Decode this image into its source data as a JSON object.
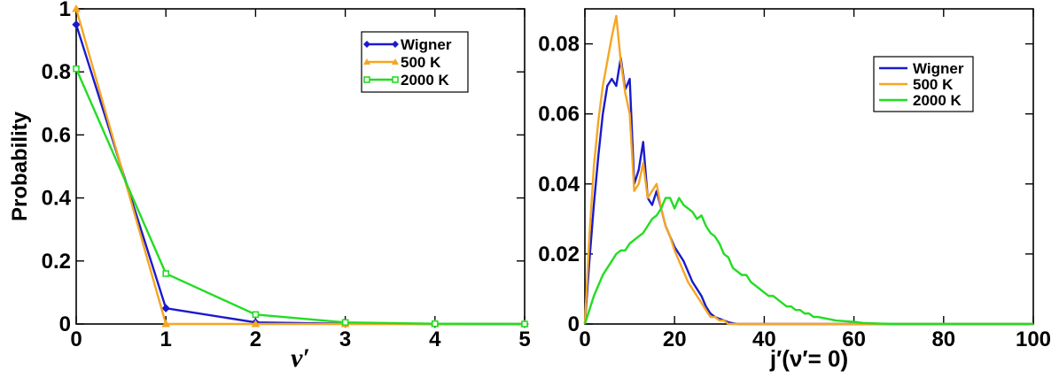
{
  "chart_data": [
    {
      "type": "line",
      "xlabel": "ν′",
      "ylabel": "Probability",
      "xlim": [
        0,
        5
      ],
      "ylim": [
        0,
        1
      ],
      "xticks": [
        "0",
        "1",
        "2",
        "3",
        "4",
        "5"
      ],
      "yticks": [
        "0",
        "0.2",
        "0.4",
        "0.6",
        "0.8",
        "1"
      ],
      "legend_position": "top-right",
      "series": [
        {
          "name": "Wigner",
          "color": "#1a1acc",
          "marker": "diamond",
          "x": [
            0,
            1,
            2,
            3,
            4,
            5
          ],
          "y": [
            0.95,
            0.05,
            0.005,
            0.001,
            0.0,
            0.0
          ]
        },
        {
          "name": "500 K",
          "color": "#f5a623",
          "marker": "triangle",
          "x": [
            0,
            1,
            2,
            3,
            4,
            5
          ],
          "y": [
            1.0,
            0.0,
            0.0,
            0.0,
            0.0,
            0.0
          ]
        },
        {
          "name": "2000 K",
          "color": "#22dd22",
          "marker": "square",
          "x": [
            0,
            1,
            2,
            3,
            4,
            5
          ],
          "y": [
            0.81,
            0.16,
            0.03,
            0.005,
            0.001,
            0.0
          ]
        }
      ]
    },
    {
      "type": "line",
      "xlabel": "j′(ν′= 0)",
      "ylabel": "",
      "xlim": [
        0,
        100
      ],
      "ylim": [
        0,
        0.09
      ],
      "xticks": [
        "0",
        "20",
        "40",
        "60",
        "80",
        "100"
      ],
      "yticks": [
        "0",
        "0.02",
        "0.04",
        "0.06",
        "0.08"
      ],
      "legend_position": "top-right",
      "series": [
        {
          "name": "Wigner",
          "color": "#1a1acc",
          "x": [
            0,
            1,
            2,
            3,
            4,
            5,
            6,
            7,
            8,
            9,
            10,
            11,
            12,
            13,
            14,
            15,
            16,
            17,
            18,
            19,
            20,
            21,
            22,
            23,
            24,
            25,
            26,
            27,
            28,
            29,
            30,
            31,
            32,
            33,
            34,
            35,
            40,
            60,
            80,
            100
          ],
          "y": [
            0,
            0.018,
            0.034,
            0.048,
            0.06,
            0.068,
            0.07,
            0.068,
            0.076,
            0.067,
            0.07,
            0.04,
            0.044,
            0.052,
            0.036,
            0.034,
            0.038,
            0.033,
            0.028,
            0.025,
            0.022,
            0.02,
            0.018,
            0.015,
            0.012,
            0.01,
            0.008,
            0.005,
            0.003,
            0.002,
            0.0015,
            0.001,
            0.0005,
            0.0002,
            0,
            0,
            0,
            0,
            0,
            0
          ]
        },
        {
          "name": "500 K",
          "color": "#f5a623",
          "x": [
            0,
            1,
            2,
            3,
            4,
            5,
            6,
            7,
            8,
            9,
            10,
            11,
            12,
            13,
            14,
            15,
            16,
            17,
            18,
            19,
            20,
            21,
            22,
            23,
            24,
            25,
            26,
            27,
            28,
            29,
            30,
            31,
            32,
            35,
            40,
            60,
            80,
            100
          ],
          "y": [
            0,
            0.025,
            0.045,
            0.058,
            0.068,
            0.075,
            0.082,
            0.088,
            0.075,
            0.066,
            0.06,
            0.038,
            0.04,
            0.046,
            0.036,
            0.038,
            0.04,
            0.033,
            0.028,
            0.025,
            0.021,
            0.018,
            0.015,
            0.012,
            0.01,
            0.008,
            0.006,
            0.004,
            0.002,
            0.002,
            0.001,
            0.001,
            0,
            0,
            0,
            0,
            0,
            0
          ]
        },
        {
          "name": "2000 K",
          "color": "#22dd22",
          "x": [
            0,
            2,
            4,
            6,
            7,
            8,
            9,
            10,
            11,
            12,
            13,
            14,
            15,
            16,
            17,
            18,
            19,
            20,
            21,
            22,
            23,
            24,
            25,
            26,
            27,
            28,
            29,
            30,
            31,
            32,
            33,
            34,
            35,
            36,
            37,
            38,
            39,
            40,
            41,
            42,
            43,
            44,
            45,
            46,
            47,
            48,
            49,
            50,
            51,
            52,
            54,
            56,
            58,
            60,
            62,
            64,
            66,
            70,
            80,
            100
          ],
          "y": [
            0,
            0.008,
            0.014,
            0.018,
            0.02,
            0.021,
            0.021,
            0.023,
            0.024,
            0.025,
            0.026,
            0.028,
            0.03,
            0.031,
            0.033,
            0.036,
            0.036,
            0.033,
            0.036,
            0.034,
            0.033,
            0.032,
            0.03,
            0.031,
            0.028,
            0.026,
            0.025,
            0.023,
            0.02,
            0.019,
            0.016,
            0.015,
            0.014,
            0.014,
            0.012,
            0.011,
            0.01,
            0.009,
            0.008,
            0.008,
            0.007,
            0.006,
            0.005,
            0.005,
            0.004,
            0.004,
            0.003,
            0.003,
            0.002,
            0.002,
            0.0015,
            0.001,
            0.0008,
            0.0006,
            0.0003,
            0.0002,
            0.0001,
            0,
            0,
            0
          ]
        }
      ]
    }
  ]
}
